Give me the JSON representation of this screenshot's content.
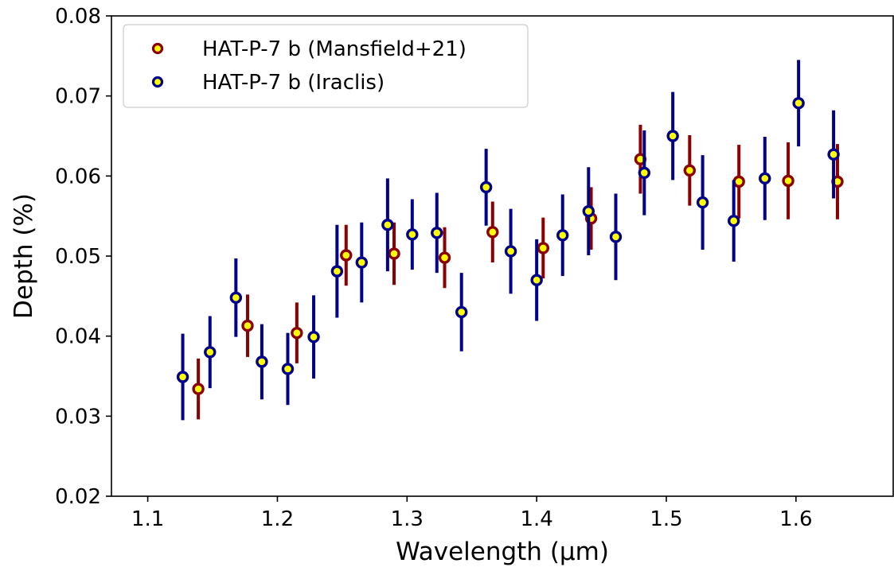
{
  "chart_data": {
    "type": "scatter",
    "title": "",
    "xlabel": "Wavelength (μm)",
    "ylabel": "Depth (%)",
    "xlim": [
      1.072,
      1.675
    ],
    "ylim": [
      0.02,
      0.08
    ],
    "xticks": [
      1.1,
      1.2,
      1.3,
      1.4,
      1.5,
      1.6
    ],
    "xtick_labels": [
      "1.1",
      "1.2",
      "1.3",
      "1.4",
      "1.5",
      "1.6"
    ],
    "yticks": [
      0.02,
      0.03,
      0.04,
      0.05,
      0.06,
      0.07,
      0.08
    ],
    "ytick_labels": [
      "0.02",
      "0.03",
      "0.04",
      "0.05",
      "0.06",
      "0.07",
      "0.08"
    ],
    "grid": false,
    "legend_position": "top-left",
    "series": [
      {
        "name": "HAT-P-7 b (Mansfield+21)",
        "edge_color": "#8b0000",
        "face_color": "#ffff00",
        "points": [
          {
            "x": 1.139,
            "y": 0.0334,
            "err": 0.0038
          },
          {
            "x": 1.177,
            "y": 0.0413,
            "err": 0.0039
          },
          {
            "x": 1.215,
            "y": 0.0404,
            "err": 0.0038
          },
          {
            "x": 1.253,
            "y": 0.0501,
            "err": 0.0038
          },
          {
            "x": 1.29,
            "y": 0.0503,
            "err": 0.0039
          },
          {
            "x": 1.329,
            "y": 0.0498,
            "err": 0.0038
          },
          {
            "x": 1.366,
            "y": 0.053,
            "err": 0.0038
          },
          {
            "x": 1.405,
            "y": 0.051,
            "err": 0.0038
          },
          {
            "x": 1.442,
            "y": 0.0547,
            "err": 0.0039
          },
          {
            "x": 1.48,
            "y": 0.0621,
            "err": 0.0043
          },
          {
            "x": 1.518,
            "y": 0.0607,
            "err": 0.0044
          },
          {
            "x": 1.556,
            "y": 0.0593,
            "err": 0.0046
          },
          {
            "x": 1.594,
            "y": 0.0594,
            "err": 0.0048
          },
          {
            "x": 1.632,
            "y": 0.0593,
            "err": 0.0047
          }
        ]
      },
      {
        "name": "HAT-P-7 b (Iraclis)",
        "edge_color": "#00008b",
        "face_color": "#ffff00",
        "points": [
          {
            "x": 1.127,
            "y": 0.0349,
            "err": 0.0054
          },
          {
            "x": 1.148,
            "y": 0.038,
            "err": 0.0045
          },
          {
            "x": 1.168,
            "y": 0.0448,
            "err": 0.0049
          },
          {
            "x": 1.188,
            "y": 0.0368,
            "err": 0.0047
          },
          {
            "x": 1.208,
            "y": 0.0359,
            "err": 0.0045
          },
          {
            "x": 1.228,
            "y": 0.0399,
            "err": 0.0052
          },
          {
            "x": 1.246,
            "y": 0.0481,
            "err": 0.0058
          },
          {
            "x": 1.265,
            "y": 0.0492,
            "err": 0.005
          },
          {
            "x": 1.285,
            "y": 0.0539,
            "err": 0.0058
          },
          {
            "x": 1.304,
            "y": 0.0527,
            "err": 0.0044
          },
          {
            "x": 1.323,
            "y": 0.0529,
            "err": 0.005
          },
          {
            "x": 1.342,
            "y": 0.043,
            "err": 0.0049
          },
          {
            "x": 1.361,
            "y": 0.0586,
            "err": 0.0048
          },
          {
            "x": 1.38,
            "y": 0.0506,
            "err": 0.0053
          },
          {
            "x": 1.4,
            "y": 0.047,
            "err": 0.0051
          },
          {
            "x": 1.42,
            "y": 0.0526,
            "err": 0.0051
          },
          {
            "x": 1.44,
            "y": 0.0556,
            "err": 0.0055
          },
          {
            "x": 1.461,
            "y": 0.0524,
            "err": 0.0054
          },
          {
            "x": 1.483,
            "y": 0.0604,
            "err": 0.0053
          },
          {
            "x": 1.505,
            "y": 0.065,
            "err": 0.0055
          },
          {
            "x": 1.528,
            "y": 0.0567,
            "err": 0.0059
          },
          {
            "x": 1.552,
            "y": 0.0544,
            "err": 0.0051
          },
          {
            "x": 1.576,
            "y": 0.0597,
            "err": 0.0052
          },
          {
            "x": 1.602,
            "y": 0.0691,
            "err": 0.0054
          },
          {
            "x": 1.629,
            "y": 0.0627,
            "err": 0.0055
          }
        ]
      }
    ]
  }
}
